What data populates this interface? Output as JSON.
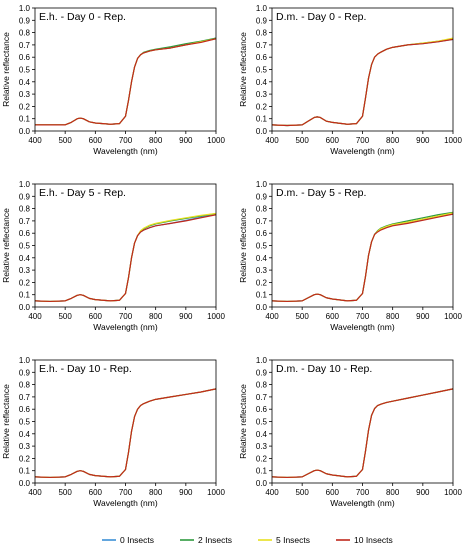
{
  "series_styles": [
    {
      "name": "0 Insects",
      "color": "#3c8fd6"
    },
    {
      "name": "2 Insects",
      "color": "#2e9a3e"
    },
    {
      "name": "5 Insects",
      "color": "#e8e020"
    },
    {
      "name": "10 Insects",
      "color": "#c0281c"
    }
  ],
  "legend": {
    "placement": "bottom-center",
    "items": [
      "0 Insects",
      "2 Insects",
      "5 Insects",
      "10 Insects"
    ]
  },
  "chart_data": [
    {
      "type": "line",
      "title": "E.h. - Day 0 - Rep.",
      "xlabel": "Wavelength (nm)",
      "ylabel": "Relative reflectance",
      "xlim": [
        400,
        1000
      ],
      "ylim": [
        0,
        1
      ],
      "xticks": [
        "400",
        "500",
        "600",
        "700",
        "800",
        "900",
        "1000"
      ],
      "yticks": [
        "0.0",
        "0.1",
        "0.2",
        "0.3",
        "0.4",
        "0.5",
        "0.6",
        "0.7",
        "0.8",
        "0.9",
        "1.0"
      ],
      "grid": false,
      "x": [
        400,
        450,
        500,
        520,
        540,
        550,
        560,
        580,
        600,
        650,
        680,
        700,
        710,
        720,
        730,
        740,
        750,
        760,
        780,
        800,
        850,
        900,
        950,
        1000
      ],
      "series": [
        {
          "name": "0 Insects",
          "values": [
            0.05,
            0.05,
            0.05,
            0.07,
            0.1,
            0.105,
            0.1,
            0.075,
            0.065,
            0.055,
            0.06,
            0.12,
            0.25,
            0.4,
            0.52,
            0.59,
            0.62,
            0.635,
            0.65,
            0.66,
            0.675,
            0.7,
            0.725,
            0.755
          ]
        },
        {
          "name": "2 Insects",
          "values": [
            0.05,
            0.05,
            0.05,
            0.07,
            0.1,
            0.105,
            0.1,
            0.075,
            0.065,
            0.055,
            0.06,
            0.12,
            0.25,
            0.4,
            0.52,
            0.59,
            0.62,
            0.64,
            0.655,
            0.665,
            0.685,
            0.71,
            0.73,
            0.755
          ]
        },
        {
          "name": "5 Insects",
          "values": [
            0.05,
            0.05,
            0.05,
            0.07,
            0.1,
            0.105,
            0.1,
            0.075,
            0.065,
            0.055,
            0.06,
            0.12,
            0.25,
            0.4,
            0.52,
            0.59,
            0.62,
            0.635,
            0.65,
            0.66,
            0.675,
            0.7,
            0.725,
            0.75
          ]
        },
        {
          "name": "10 Insects",
          "values": [
            0.05,
            0.05,
            0.05,
            0.07,
            0.1,
            0.105,
            0.1,
            0.075,
            0.065,
            0.055,
            0.06,
            0.12,
            0.25,
            0.4,
            0.52,
            0.59,
            0.62,
            0.635,
            0.65,
            0.66,
            0.675,
            0.7,
            0.72,
            0.75
          ]
        }
      ]
    },
    {
      "type": "line",
      "title": "D.m. - Day 0 - Rep.",
      "xlabel": "Wavelength (nm)",
      "ylabel": "Relative reflectance",
      "xlim": [
        400,
        1000
      ],
      "ylim": [
        0,
        1
      ],
      "xticks": [
        "400",
        "500",
        "600",
        "700",
        "800",
        "900",
        "1000"
      ],
      "yticks": [
        "0.0",
        "0.1",
        "0.2",
        "0.3",
        "0.4",
        "0.5",
        "0.6",
        "0.7",
        "0.8",
        "0.9",
        "1.0"
      ],
      "grid": false,
      "x": [
        400,
        450,
        500,
        520,
        540,
        550,
        560,
        580,
        600,
        650,
        680,
        700,
        710,
        720,
        730,
        740,
        750,
        760,
        780,
        800,
        850,
        900,
        950,
        1000
      ],
      "series": [
        {
          "name": "0 Insects",
          "values": [
            0.05,
            0.045,
            0.05,
            0.08,
            0.11,
            0.115,
            0.11,
            0.08,
            0.07,
            0.055,
            0.06,
            0.12,
            0.27,
            0.43,
            0.54,
            0.6,
            0.625,
            0.64,
            0.665,
            0.68,
            0.7,
            0.71,
            0.725,
            0.745
          ]
        },
        {
          "name": "2 Insects",
          "values": [
            0.05,
            0.045,
            0.05,
            0.08,
            0.11,
            0.115,
            0.11,
            0.08,
            0.07,
            0.055,
            0.06,
            0.12,
            0.27,
            0.43,
            0.54,
            0.6,
            0.625,
            0.64,
            0.665,
            0.68,
            0.7,
            0.715,
            0.73,
            0.75
          ]
        },
        {
          "name": "5 Insects",
          "values": [
            0.05,
            0.045,
            0.05,
            0.08,
            0.11,
            0.115,
            0.11,
            0.08,
            0.07,
            0.055,
            0.06,
            0.12,
            0.27,
            0.43,
            0.54,
            0.6,
            0.625,
            0.64,
            0.665,
            0.68,
            0.7,
            0.715,
            0.73,
            0.755
          ]
        },
        {
          "name": "10 Insects",
          "values": [
            0.05,
            0.045,
            0.05,
            0.08,
            0.11,
            0.115,
            0.11,
            0.08,
            0.07,
            0.055,
            0.06,
            0.12,
            0.27,
            0.43,
            0.54,
            0.6,
            0.625,
            0.64,
            0.665,
            0.68,
            0.7,
            0.71,
            0.725,
            0.745
          ]
        }
      ]
    },
    {
      "type": "line",
      "title": "E.h. - Day 5 - Rep.",
      "xlabel": "Wavelength (nm)",
      "ylabel": "Relative reflectance",
      "xlim": [
        400,
        1000
      ],
      "ylim": [
        0,
        1
      ],
      "xticks": [
        "400",
        "500",
        "600",
        "700",
        "800",
        "900",
        "1000"
      ],
      "yticks": [
        "0.0",
        "0.1",
        "0.2",
        "0.3",
        "0.4",
        "0.5",
        "0.6",
        "0.7",
        "0.8",
        "0.9",
        "1.0"
      ],
      "grid": false,
      "x": [
        400,
        450,
        500,
        520,
        540,
        550,
        560,
        580,
        600,
        650,
        680,
        700,
        710,
        720,
        730,
        740,
        750,
        760,
        780,
        800,
        850,
        900,
        950,
        1000
      ],
      "series": [
        {
          "name": "0 Insects",
          "values": [
            0.05,
            0.045,
            0.05,
            0.07,
            0.095,
            0.1,
            0.095,
            0.07,
            0.06,
            0.05,
            0.055,
            0.11,
            0.24,
            0.4,
            0.52,
            0.58,
            0.61,
            0.625,
            0.645,
            0.66,
            0.68,
            0.705,
            0.73,
            0.755
          ]
        },
        {
          "name": "2 Insects",
          "values": [
            0.05,
            0.045,
            0.05,
            0.07,
            0.095,
            0.1,
            0.095,
            0.07,
            0.06,
            0.05,
            0.055,
            0.11,
            0.24,
            0.4,
            0.52,
            0.58,
            0.615,
            0.635,
            0.66,
            0.675,
            0.7,
            0.72,
            0.74,
            0.76
          ]
        },
        {
          "name": "5 Insects",
          "values": [
            0.05,
            0.045,
            0.05,
            0.07,
            0.095,
            0.1,
            0.095,
            0.07,
            0.06,
            0.05,
            0.055,
            0.11,
            0.24,
            0.4,
            0.52,
            0.58,
            0.62,
            0.64,
            0.665,
            0.68,
            0.705,
            0.725,
            0.745,
            0.76
          ]
        },
        {
          "name": "10 Insects",
          "values": [
            0.05,
            0.045,
            0.05,
            0.07,
            0.095,
            0.1,
            0.095,
            0.07,
            0.06,
            0.05,
            0.055,
            0.11,
            0.24,
            0.4,
            0.52,
            0.58,
            0.61,
            0.625,
            0.645,
            0.66,
            0.68,
            0.7,
            0.725,
            0.75
          ]
        }
      ]
    },
    {
      "type": "line",
      "title": "D.m. - Day 5 - Rep.",
      "xlabel": "Wavelength (nm)",
      "ylabel": "Relative reflectance",
      "xlim": [
        400,
        1000
      ],
      "ylim": [
        0,
        1
      ],
      "xticks": [
        "400",
        "500",
        "600",
        "700",
        "800",
        "900",
        "1000"
      ],
      "yticks": [
        "0.0",
        "0.1",
        "0.2",
        "0.3",
        "0.4",
        "0.5",
        "0.6",
        "0.7",
        "0.8",
        "0.9",
        "1.0"
      ],
      "grid": false,
      "x": [
        400,
        450,
        500,
        520,
        540,
        550,
        560,
        580,
        600,
        650,
        680,
        700,
        710,
        720,
        730,
        740,
        750,
        760,
        780,
        800,
        850,
        900,
        950,
        1000
      ],
      "series": [
        {
          "name": "0 Insects",
          "values": [
            0.05,
            0.045,
            0.05,
            0.075,
            0.1,
            0.105,
            0.1,
            0.075,
            0.065,
            0.05,
            0.055,
            0.11,
            0.25,
            0.42,
            0.53,
            0.59,
            0.615,
            0.63,
            0.65,
            0.665,
            0.685,
            0.71,
            0.735,
            0.76
          ]
        },
        {
          "name": "2 Insects",
          "values": [
            0.05,
            0.045,
            0.05,
            0.075,
            0.1,
            0.105,
            0.1,
            0.075,
            0.065,
            0.05,
            0.055,
            0.11,
            0.25,
            0.42,
            0.53,
            0.59,
            0.62,
            0.64,
            0.66,
            0.675,
            0.7,
            0.725,
            0.75,
            0.77
          ]
        },
        {
          "name": "5 Insects",
          "values": [
            0.05,
            0.045,
            0.05,
            0.075,
            0.1,
            0.105,
            0.1,
            0.075,
            0.065,
            0.05,
            0.055,
            0.11,
            0.25,
            0.42,
            0.53,
            0.59,
            0.615,
            0.635,
            0.655,
            0.67,
            0.69,
            0.715,
            0.74,
            0.765
          ]
        },
        {
          "name": "10 Insects",
          "values": [
            0.05,
            0.045,
            0.05,
            0.075,
            0.1,
            0.105,
            0.1,
            0.075,
            0.065,
            0.05,
            0.055,
            0.11,
            0.25,
            0.42,
            0.53,
            0.59,
            0.61,
            0.625,
            0.645,
            0.66,
            0.68,
            0.705,
            0.73,
            0.755
          ]
        }
      ]
    },
    {
      "type": "line",
      "title": "E.h. - Day 10 - Rep.",
      "xlabel": "Wavelength (nm)",
      "ylabel": "Relative reflectance",
      "xlim": [
        400,
        1000
      ],
      "ylim": [
        0,
        1
      ],
      "xticks": [
        "400",
        "500",
        "600",
        "700",
        "800",
        "900",
        "1000"
      ],
      "yticks": [
        "0.0",
        "0.1",
        "0.2",
        "0.3",
        "0.4",
        "0.5",
        "0.6",
        "0.7",
        "0.8",
        "0.9",
        "1.0"
      ],
      "grid": false,
      "x": [
        400,
        450,
        500,
        520,
        540,
        550,
        560,
        580,
        600,
        650,
        680,
        700,
        710,
        720,
        730,
        740,
        750,
        760,
        780,
        800,
        850,
        900,
        950,
        1000
      ],
      "series": [
        {
          "name": "0 Insects",
          "values": [
            0.05,
            0.045,
            0.05,
            0.07,
            0.095,
            0.1,
            0.095,
            0.07,
            0.06,
            0.05,
            0.055,
            0.11,
            0.25,
            0.42,
            0.54,
            0.6,
            0.63,
            0.645,
            0.665,
            0.68,
            0.7,
            0.72,
            0.74,
            0.765
          ]
        },
        {
          "name": "2 Insects",
          "values": [
            0.05,
            0.045,
            0.05,
            0.07,
            0.095,
            0.1,
            0.095,
            0.07,
            0.06,
            0.05,
            0.055,
            0.11,
            0.25,
            0.42,
            0.54,
            0.6,
            0.63,
            0.645,
            0.665,
            0.68,
            0.7,
            0.72,
            0.74,
            0.765
          ]
        },
        {
          "name": "5 Insects",
          "values": [
            0.05,
            0.045,
            0.05,
            0.07,
            0.095,
            0.1,
            0.095,
            0.07,
            0.06,
            0.05,
            0.055,
            0.11,
            0.25,
            0.42,
            0.54,
            0.6,
            0.63,
            0.645,
            0.665,
            0.68,
            0.7,
            0.72,
            0.74,
            0.765
          ]
        },
        {
          "name": "10 Insects",
          "values": [
            0.05,
            0.045,
            0.05,
            0.07,
            0.095,
            0.1,
            0.095,
            0.07,
            0.06,
            0.05,
            0.055,
            0.11,
            0.25,
            0.42,
            0.54,
            0.6,
            0.63,
            0.645,
            0.665,
            0.68,
            0.7,
            0.72,
            0.74,
            0.765
          ]
        }
      ]
    },
    {
      "type": "line",
      "title": "D.m. - Day 10 - Rep.",
      "xlabel": "Wavelength (nm)",
      "ylabel": "Relative reflectance",
      "xlim": [
        400,
        1000
      ],
      "ylim": [
        0,
        1
      ],
      "xticks": [
        "400",
        "500",
        "600",
        "700",
        "800",
        "900",
        "1000"
      ],
      "yticks": [
        "0.0",
        "0.1",
        "0.2",
        "0.3",
        "0.4",
        "0.5",
        "0.6",
        "0.7",
        "0.8",
        "0.9",
        "1.0"
      ],
      "grid": false,
      "x": [
        400,
        450,
        500,
        520,
        540,
        550,
        560,
        580,
        600,
        650,
        680,
        700,
        710,
        720,
        730,
        740,
        750,
        760,
        780,
        800,
        850,
        900,
        950,
        1000
      ],
      "series": [
        {
          "name": "0 Insects",
          "values": [
            0.05,
            0.045,
            0.05,
            0.075,
            0.1,
            0.105,
            0.1,
            0.075,
            0.065,
            0.05,
            0.055,
            0.11,
            0.26,
            0.43,
            0.55,
            0.605,
            0.63,
            0.64,
            0.655,
            0.665,
            0.69,
            0.715,
            0.74,
            0.765
          ]
        },
        {
          "name": "2 Insects",
          "values": [
            0.05,
            0.045,
            0.05,
            0.075,
            0.1,
            0.105,
            0.1,
            0.075,
            0.065,
            0.05,
            0.055,
            0.11,
            0.26,
            0.43,
            0.55,
            0.605,
            0.63,
            0.64,
            0.655,
            0.665,
            0.69,
            0.715,
            0.74,
            0.765
          ]
        },
        {
          "name": "5 Insects",
          "values": [
            0.05,
            0.045,
            0.05,
            0.075,
            0.1,
            0.105,
            0.1,
            0.075,
            0.065,
            0.05,
            0.055,
            0.11,
            0.26,
            0.43,
            0.55,
            0.605,
            0.63,
            0.64,
            0.655,
            0.665,
            0.69,
            0.715,
            0.74,
            0.765
          ]
        },
        {
          "name": "10 Insects",
          "values": [
            0.05,
            0.045,
            0.05,
            0.075,
            0.1,
            0.105,
            0.1,
            0.075,
            0.065,
            0.05,
            0.055,
            0.11,
            0.26,
            0.43,
            0.55,
            0.605,
            0.63,
            0.64,
            0.655,
            0.665,
            0.69,
            0.715,
            0.74,
            0.765
          ]
        }
      ]
    }
  ]
}
